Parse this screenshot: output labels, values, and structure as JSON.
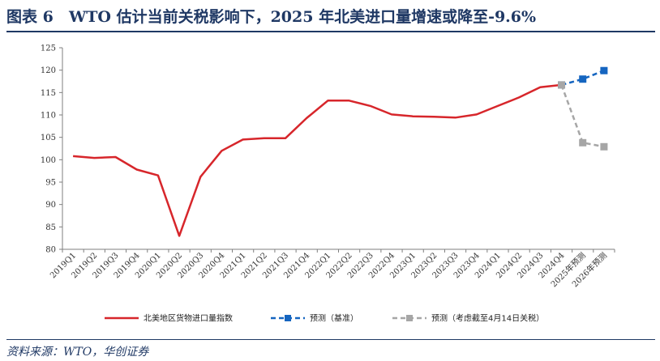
{
  "header": {
    "figure_label": "图表 6",
    "title": "WTO 估计当前关税影响下，2025 年北美进口量增速或降至-9.6%"
  },
  "source": "资料来源：WTO，华创证券",
  "chart_data": {
    "type": "line",
    "title": "",
    "xlabel": "",
    "ylabel": "",
    "ylim": [
      80,
      125
    ],
    "yticks": [
      80,
      85,
      90,
      95,
      100,
      105,
      110,
      115,
      120,
      125
    ],
    "grid": false,
    "legend_position": "bottom",
    "categories": [
      "2019Q1",
      "2019Q2",
      "2019Q3",
      "2019Q4",
      "2020Q1",
      "2020Q2",
      "2020Q3",
      "2020Q4",
      "2021Q1",
      "2021Q2",
      "2021Q3",
      "2021Q4",
      "2022Q1",
      "2022Q2",
      "2022Q3",
      "2022Q4",
      "2023Q1",
      "2023Q2",
      "2023Q3",
      "2023Q4",
      "2024Q1",
      "2024Q2",
      "2024Q3",
      "2024Q4",
      "2025年预测",
      "2026年预测"
    ],
    "series": [
      {
        "name": "北美地区货物进口量指数",
        "color": "#d7262b",
        "style": "solid",
        "values": [
          100.8,
          100.4,
          100.6,
          97.8,
          96.5,
          83.0,
          96.2,
          102.0,
          104.5,
          104.8,
          104.8,
          109.3,
          113.2,
          113.2,
          112.0,
          110.1,
          109.7,
          109.6,
          109.4,
          110.1,
          112.0,
          113.9,
          116.2,
          116.7,
          null,
          null
        ]
      },
      {
        "name": "预测（基准）",
        "color": "#1565c0",
        "style": "dashed",
        "marker": "square",
        "values": [
          null,
          null,
          null,
          null,
          null,
          null,
          null,
          null,
          null,
          null,
          null,
          null,
          null,
          null,
          null,
          null,
          null,
          null,
          null,
          null,
          null,
          null,
          null,
          116.7,
          118.0,
          119.9
        ]
      },
      {
        "name": "预测（考虑截至4月14日关税）",
        "color": "#a6a6a6",
        "style": "dashed",
        "marker": "square",
        "values": [
          null,
          null,
          null,
          null,
          null,
          null,
          null,
          null,
          null,
          null,
          null,
          null,
          null,
          null,
          null,
          null,
          null,
          null,
          null,
          null,
          null,
          null,
          null,
          116.7,
          103.8,
          102.9
        ]
      }
    ]
  }
}
